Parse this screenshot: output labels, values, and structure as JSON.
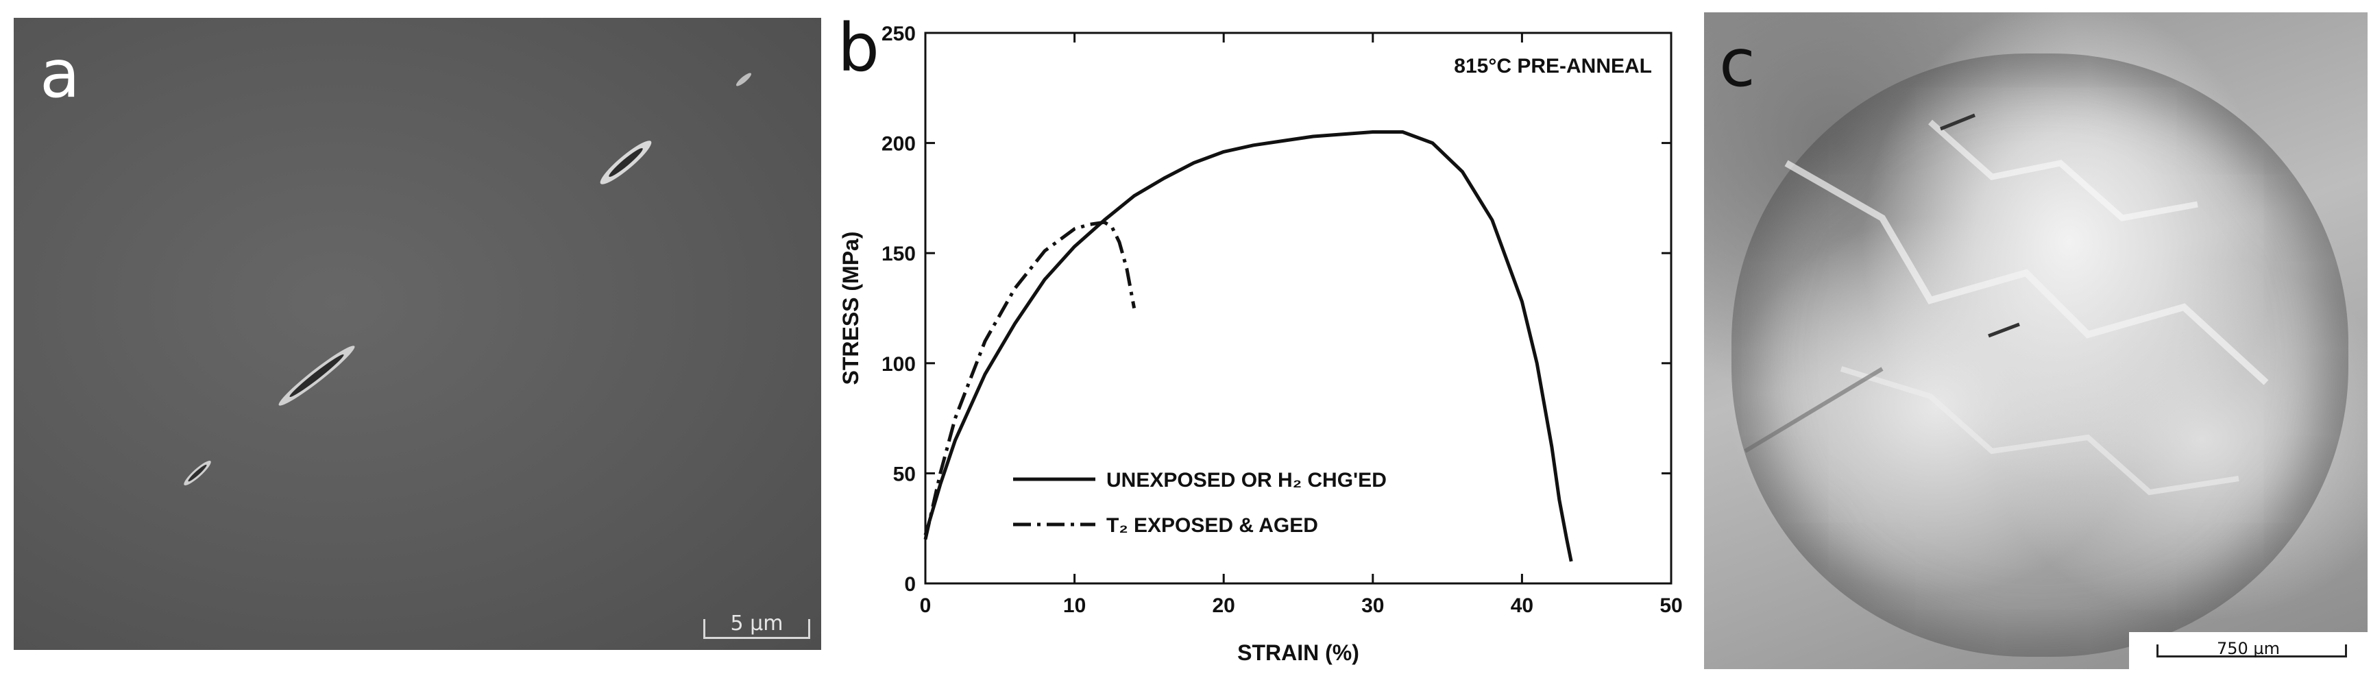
{
  "panels": {
    "a": {
      "letter": "a",
      "scale_label": "5 µm"
    },
    "b": {
      "letter": "b"
    },
    "c": {
      "letter": "c",
      "scale_label": "750 µm"
    }
  },
  "chart_data": {
    "type": "line",
    "title": "",
    "annotation": "815°C PRE-ANNEAL",
    "xlabel": "STRAIN (%)",
    "ylabel": "STRESS (MPa)",
    "xlim": [
      0,
      50
    ],
    "ylim": [
      0,
      250
    ],
    "xticks": [
      0,
      10,
      20,
      30,
      40,
      50
    ],
    "yticks": [
      0,
      50,
      100,
      150,
      200,
      250
    ],
    "grid": false,
    "legend_position": "bottom-left",
    "series": [
      {
        "name": "UNEXPOSED OR H₂ CHG'ED",
        "style": "solid",
        "x": [
          0,
          1,
          2,
          4,
          6,
          8,
          10,
          12,
          14,
          16,
          18,
          20,
          22,
          24,
          26,
          28,
          30,
          32,
          34,
          36,
          38,
          40,
          41,
          42,
          42.5,
          43,
          43.3
        ],
        "y": [
          22,
          45,
          65,
          95,
          118,
          138,
          153,
          165,
          176,
          184,
          191,
          196,
          199,
          201,
          203,
          204,
          205,
          205,
          200,
          187,
          165,
          128,
          100,
          62,
          38,
          20,
          10
        ]
      },
      {
        "name": "T₂ EXPOSED & AGED",
        "style": "dashdot",
        "x": [
          0,
          1,
          2,
          4,
          6,
          8,
          10,
          11,
          12,
          12.5,
          13,
          13.5,
          14
        ],
        "y": [
          20,
          50,
          75,
          110,
          134,
          151,
          161,
          163,
          164,
          162,
          155,
          143,
          125
        ]
      }
    ]
  }
}
